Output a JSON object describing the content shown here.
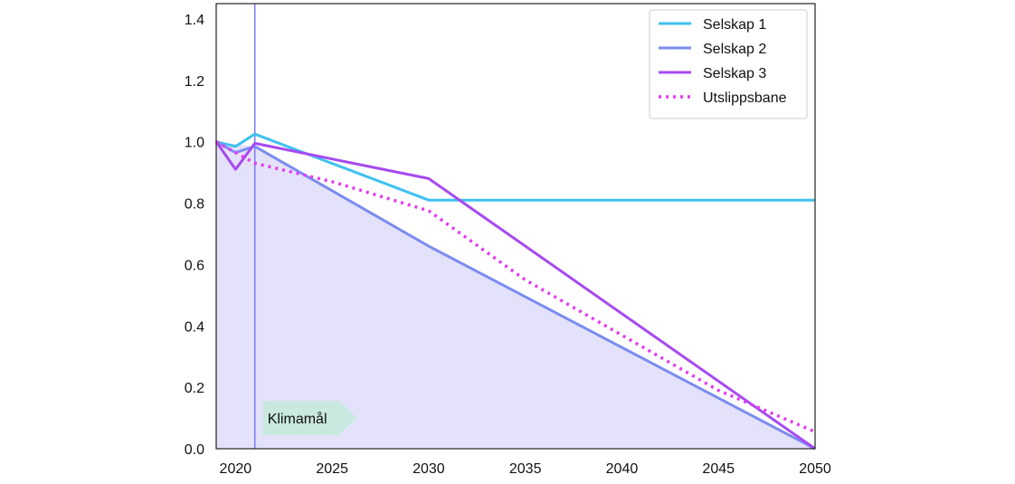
{
  "chart_data": {
    "type": "line",
    "title": "",
    "xlabel": "",
    "ylabel": "",
    "xlim": [
      2019,
      2050
    ],
    "ylim": [
      0,
      1.45
    ],
    "x_ticks": [
      "2020",
      "2025",
      "2030",
      "2035",
      "2040",
      "2045",
      "2050"
    ],
    "y_ticks": [
      "0.0",
      "0.2",
      "0.4",
      "0.6",
      "0.8",
      "1.0",
      "1.2",
      "1.4"
    ],
    "grid": false,
    "legend_position": "top-right",
    "series": [
      {
        "name": "Selskap 1",
        "color": "#3fc1f0",
        "style": "solid",
        "points": [
          [
            2019,
            1.0
          ],
          [
            2020,
            0.985
          ],
          [
            2021,
            1.025
          ],
          [
            2030,
            0.81
          ],
          [
            2050,
            0.81
          ]
        ]
      },
      {
        "name": "Selskap 2",
        "color": "#7b8cf0",
        "style": "solid",
        "points": [
          [
            2019,
            1.0
          ],
          [
            2020,
            0.965
          ],
          [
            2021,
            0.985
          ],
          [
            2030,
            0.66
          ],
          [
            2050,
            0.0
          ]
        ]
      },
      {
        "name": "Selskap 3",
        "color": "#a64af0",
        "style": "solid",
        "points": [
          [
            2019,
            1.0
          ],
          [
            2020,
            0.91
          ],
          [
            2021,
            0.995
          ],
          [
            2030,
            0.88
          ],
          [
            2050,
            0.0
          ]
        ]
      },
      {
        "name": "Utslippsbane",
        "color": "#e43bf0",
        "style": "dotted",
        "points": [
          [
            2019,
            1.0
          ],
          [
            2021,
            0.93
          ],
          [
            2025,
            0.87
          ],
          [
            2030,
            0.775
          ],
          [
            2035,
            0.55
          ],
          [
            2040,
            0.37
          ],
          [
            2045,
            0.19
          ],
          [
            2050,
            0.055
          ]
        ]
      }
    ],
    "shaded_area": {
      "color": "#e4e2fb",
      "points": [
        [
          2019,
          1.0
        ],
        [
          2021,
          0.985
        ],
        [
          2030,
          0.66
        ],
        [
          2050,
          0.0
        ]
      ]
    },
    "vertical_line": {
      "x": 2021,
      "color": "#7b7bf2"
    },
    "annotation": {
      "text": "Klimamål",
      "x": 2021,
      "color": "#c9e8df"
    }
  }
}
